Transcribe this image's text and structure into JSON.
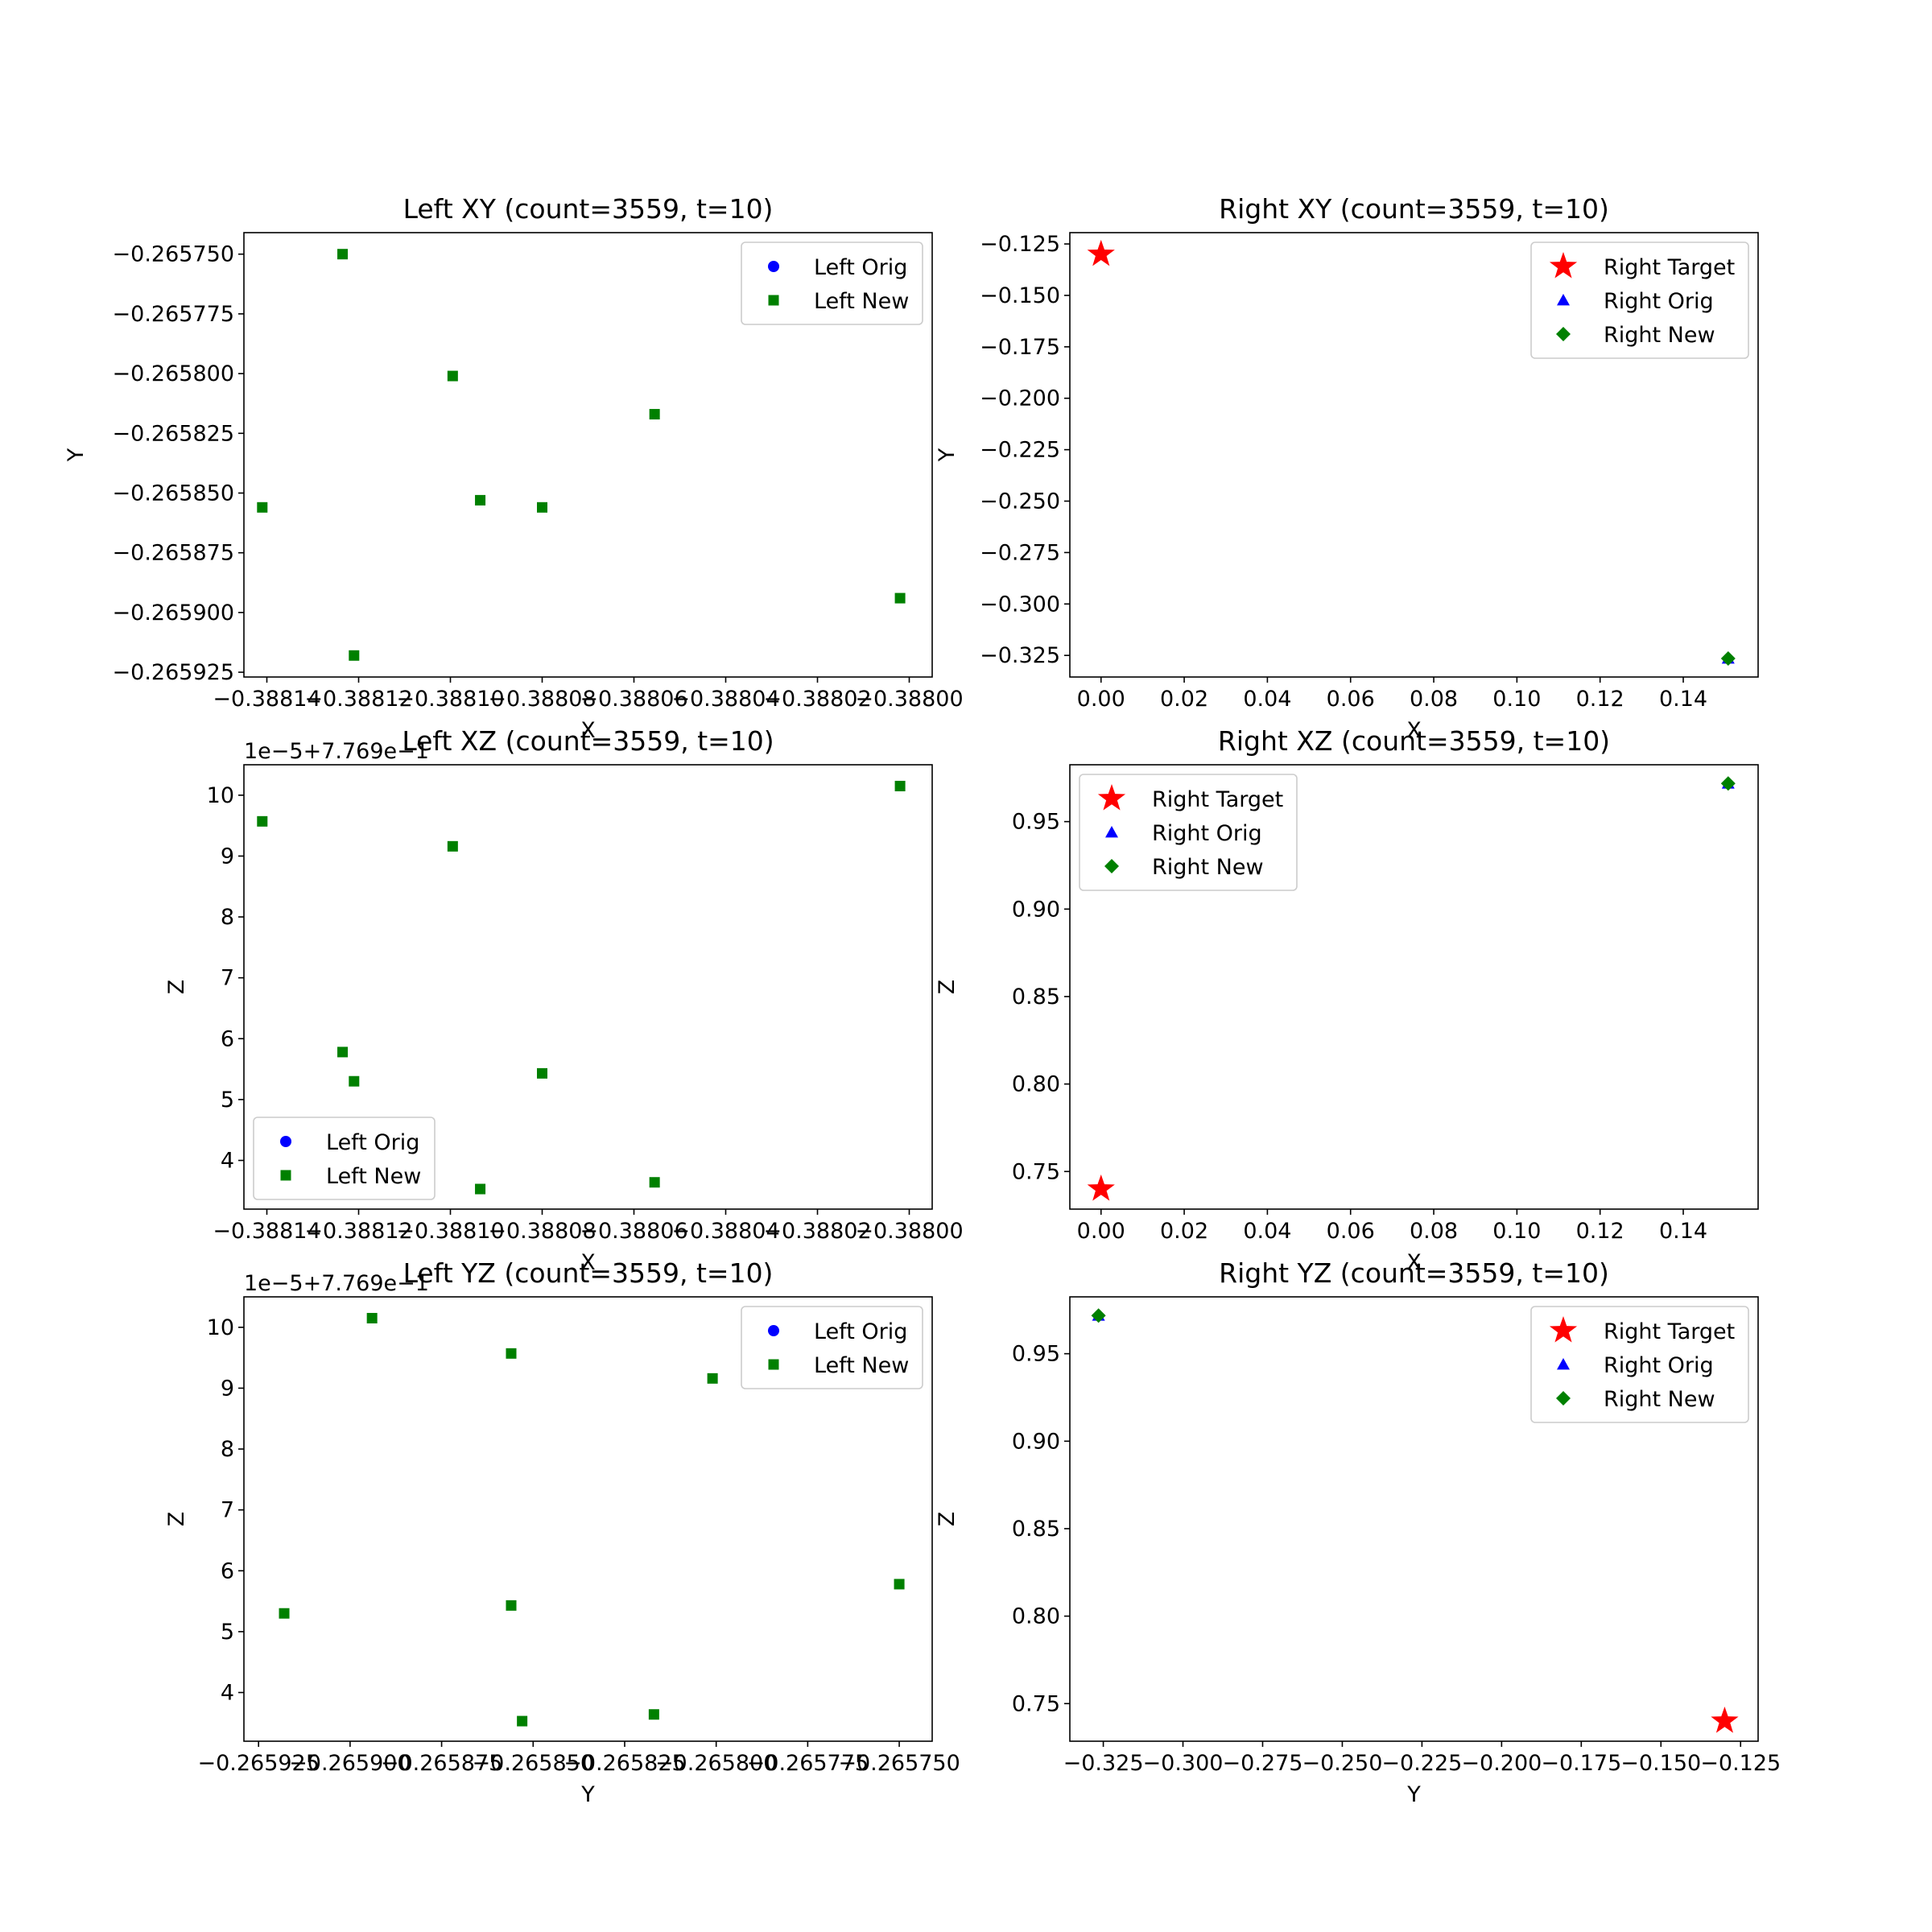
{
  "figure": {
    "background": "#ffffff"
  },
  "markers": {
    "orig_color": "#0000ff",
    "new_color": "#008000",
    "target_color": "#ff0000"
  },
  "chart_data": [
    {
      "id": "left-xy",
      "type": "scatter",
      "title": "Left XY (count=3559, t=10)",
      "xlabel": "X",
      "ylabel": "Y",
      "offset_text": "",
      "xlim": [
        -0.388145,
        -0.387995
      ],
      "ylim": [
        -0.265927,
        -0.265741
      ],
      "xticks": [
        -0.38814,
        -0.38812,
        -0.3881,
        -0.38808,
        -0.38806,
        -0.38804,
        -0.38802,
        -0.388
      ],
      "xtick_labels": [
        "−0.38814",
        "−0.38812",
        "−0.38810",
        "−0.38808",
        "−0.38806",
        "−0.38804",
        "−0.38802",
        "−0.38800"
      ],
      "yticks": [
        -0.26575,
        -0.265775,
        -0.2658,
        -0.265825,
        -0.26585,
        -0.265875,
        -0.2659,
        -0.265925
      ],
      "ytick_labels": [
        "−0.265750",
        "−0.265775",
        "−0.265800",
        "−0.265825",
        "−0.265850",
        "−0.265875",
        "−0.265900",
        "−0.265925"
      ],
      "legend": {
        "position": "upper right",
        "entries": [
          {
            "label": "Left Orig",
            "marker": "circle",
            "color": "#0000ff"
          },
          {
            "label": "Left New",
            "marker": "square",
            "color": "#008000"
          }
        ]
      },
      "series": [
        {
          "name": "Left Orig",
          "marker": "circle",
          "color": "#0000ff",
          "x": [],
          "y": []
        },
        {
          "name": "Left New",
          "marker": "square",
          "color": "#008000",
          "x": [
            -0.388141,
            -0.3881235,
            -0.388121,
            -0.3880995,
            -0.3880935,
            -0.38808,
            -0.3880555,
            -0.388002
          ],
          "y": [
            -0.265856,
            -0.26575,
            -0.265918,
            -0.265801,
            -0.265853,
            -0.265856,
            -0.265817,
            -0.265894
          ]
        }
      ]
    },
    {
      "id": "right-xy",
      "type": "scatter",
      "title": "Right XY (count=3559, t=10)",
      "xlabel": "X",
      "ylabel": "Y",
      "offset_text": "",
      "xlim": [
        -0.0075,
        0.158
      ],
      "ylim": [
        -0.3355,
        -0.1195
      ],
      "xticks": [
        0,
        0.02,
        0.04,
        0.06,
        0.08,
        0.1,
        0.12,
        0.14
      ],
      "xtick_labels": [
        "0.00",
        "0.02",
        "0.04",
        "0.06",
        "0.08",
        "0.10",
        "0.12",
        "0.14"
      ],
      "yticks": [
        -0.125,
        -0.15,
        -0.175,
        -0.2,
        -0.225,
        -0.25,
        -0.275,
        -0.3,
        -0.325
      ],
      "ytick_labels": [
        "−0.125",
        "−0.150",
        "−0.175",
        "−0.200",
        "−0.225",
        "−0.250",
        "−0.275",
        "−0.300",
        "−0.325"
      ],
      "legend": {
        "position": "upper right",
        "entries": [
          {
            "label": "Right Target",
            "marker": "star",
            "color": "#ff0000"
          },
          {
            "label": "Right Orig",
            "marker": "triangle",
            "color": "#0000ff"
          },
          {
            "label": "Right New",
            "marker": "diamond",
            "color": "#008000"
          }
        ]
      },
      "series": [
        {
          "name": "Right Target",
          "marker": "star",
          "color": "#ff0000",
          "x": [
            0.0
          ],
          "y": [
            -0.13
          ]
        },
        {
          "name": "Right Orig",
          "marker": "triangle",
          "color": "#0000ff",
          "x": [
            0.1508
          ],
          "y": [
            -0.3265
          ]
        },
        {
          "name": "Right New",
          "marker": "diamond",
          "color": "#008000",
          "x": [
            0.1508
          ],
          "y": [
            -0.3265
          ]
        }
      ]
    },
    {
      "id": "left-xz",
      "type": "scatter",
      "title": "Left XZ (count=3559, t=10)",
      "xlabel": "X",
      "ylabel": "Z",
      "offset_text": "1e−5+7.769e−1",
      "xlim": [
        -0.388145,
        -0.387995
      ],
      "ylim": [
        3.2,
        10.5
      ],
      "xticks": [
        -0.38814,
        -0.38812,
        -0.3881,
        -0.38808,
        -0.38806,
        -0.38804,
        -0.38802,
        -0.388
      ],
      "xtick_labels": [
        "−0.38814",
        "−0.38812",
        "−0.38810",
        "−0.38808",
        "−0.38806",
        "−0.38804",
        "−0.38802",
        "−0.38800"
      ],
      "yticks": [
        4,
        5,
        6,
        7,
        8,
        9,
        10
      ],
      "ytick_labels": [
        "4",
        "5",
        "6",
        "7",
        "8",
        "9",
        "10"
      ],
      "legend": {
        "position": "lower left",
        "entries": [
          {
            "label": "Left Orig",
            "marker": "circle",
            "color": "#0000ff"
          },
          {
            "label": "Left New",
            "marker": "square",
            "color": "#008000"
          }
        ]
      },
      "series": [
        {
          "name": "Left Orig",
          "marker": "circle",
          "color": "#0000ff",
          "x": [],
          "y": []
        },
        {
          "name": "Left New",
          "marker": "square",
          "color": "#008000",
          "x": [
            -0.388141,
            -0.3881235,
            -0.388121,
            -0.3880995,
            -0.3880935,
            -0.38808,
            -0.3880555,
            -0.388002
          ],
          "y": [
            9.57,
            5.78,
            5.3,
            9.16,
            3.53,
            5.43,
            3.64,
            10.15
          ]
        }
      ]
    },
    {
      "id": "right-xz",
      "type": "scatter",
      "title": "Right XZ (count=3559, t=10)",
      "xlabel": "X",
      "ylabel": "Z",
      "offset_text": "",
      "xlim": [
        -0.0075,
        0.158
      ],
      "ylim": [
        0.7285,
        0.9825
      ],
      "xticks": [
        0,
        0.02,
        0.04,
        0.06,
        0.08,
        0.1,
        0.12,
        0.14
      ],
      "xtick_labels": [
        "0.00",
        "0.02",
        "0.04",
        "0.06",
        "0.08",
        "0.10",
        "0.12",
        "0.14"
      ],
      "yticks": [
        0.75,
        0.8,
        0.85,
        0.9,
        0.95
      ],
      "ytick_labels": [
        "0.75",
        "0.80",
        "0.85",
        "0.90",
        "0.95"
      ],
      "legend": {
        "position": "upper left",
        "entries": [
          {
            "label": "Right Target",
            "marker": "star",
            "color": "#ff0000"
          },
          {
            "label": "Right Orig",
            "marker": "triangle",
            "color": "#0000ff"
          },
          {
            "label": "Right New",
            "marker": "diamond",
            "color": "#008000"
          }
        ]
      },
      "series": [
        {
          "name": "Right Target",
          "marker": "star",
          "color": "#ff0000",
          "x": [
            0.0
          ],
          "y": [
            0.74
          ]
        },
        {
          "name": "Right Orig",
          "marker": "triangle",
          "color": "#0000ff",
          "x": [
            0.1508
          ],
          "y": [
            0.9718
          ]
        },
        {
          "name": "Right New",
          "marker": "diamond",
          "color": "#008000",
          "x": [
            0.1508
          ],
          "y": [
            0.9718
          ]
        }
      ]
    },
    {
      "id": "left-yz",
      "type": "scatter",
      "title": "Left YZ (count=3559, t=10)",
      "xlabel": "Y",
      "ylabel": "Z",
      "offset_text": "1e−5+7.769e−1",
      "xlim": [
        -0.265929,
        -0.265741
      ],
      "ylim": [
        3.2,
        10.5
      ],
      "xticks": [
        -0.265925,
        -0.2659,
        -0.265875,
        -0.26585,
        -0.265825,
        -0.2658,
        -0.265775,
        -0.26575
      ],
      "xtick_labels": [
        "−0.265925",
        "−0.265900",
        "−0.265875",
        "−0.265850",
        "−0.265825",
        "−0.265800",
        "−0.265775",
        "−0.265750"
      ],
      "yticks": [
        4,
        5,
        6,
        7,
        8,
        9,
        10
      ],
      "ytick_labels": [
        "4",
        "5",
        "6",
        "7",
        "8",
        "9",
        "10"
      ],
      "legend": {
        "position": "upper right",
        "entries": [
          {
            "label": "Left Orig",
            "marker": "circle",
            "color": "#0000ff"
          },
          {
            "label": "Left New",
            "marker": "square",
            "color": "#008000"
          }
        ]
      },
      "series": [
        {
          "name": "Left Orig",
          "marker": "circle",
          "color": "#0000ff",
          "x": [],
          "y": []
        },
        {
          "name": "Left New",
          "marker": "square",
          "color": "#008000",
          "x": [
            -0.265918,
            -0.265894,
            -0.265856,
            -0.265853,
            -0.265856,
            -0.265817,
            -0.265801,
            -0.26575
          ],
          "y": [
            5.3,
            10.15,
            9.57,
            3.53,
            5.43,
            3.64,
            9.16,
            5.78
          ]
        }
      ]
    },
    {
      "id": "right-yz",
      "type": "scatter",
      "title": "Right YZ (count=3559, t=10)",
      "xlabel": "Y",
      "ylabel": "Z",
      "offset_text": "",
      "xlim": [
        -0.3355,
        -0.1195
      ],
      "ylim": [
        0.7285,
        0.9825
      ],
      "xticks": [
        -0.325,
        -0.3,
        -0.275,
        -0.25,
        -0.225,
        -0.2,
        -0.175,
        -0.15,
        -0.125
      ],
      "xtick_labels": [
        "−0.325",
        "−0.300",
        "−0.275",
        "−0.250",
        "−0.225",
        "−0.200",
        "−0.175",
        "−0.150",
        "−0.125"
      ],
      "yticks": [
        0.75,
        0.8,
        0.85,
        0.9,
        0.95
      ],
      "ytick_labels": [
        "0.75",
        "0.80",
        "0.85",
        "0.90",
        "0.95"
      ],
      "legend": {
        "position": "upper right",
        "entries": [
          {
            "label": "Right Target",
            "marker": "star",
            "color": "#ff0000"
          },
          {
            "label": "Right Orig",
            "marker": "triangle",
            "color": "#0000ff"
          },
          {
            "label": "Right New",
            "marker": "diamond",
            "color": "#008000"
          }
        ]
      },
      "series": [
        {
          "name": "Right Target",
          "marker": "star",
          "color": "#ff0000",
          "x": [
            -0.13
          ],
          "y": [
            0.74
          ]
        },
        {
          "name": "Right Orig",
          "marker": "triangle",
          "color": "#0000ff",
          "x": [
            -0.3265
          ],
          "y": [
            0.9718
          ]
        },
        {
          "name": "Right New",
          "marker": "diamond",
          "color": "#008000",
          "x": [
            -0.3265
          ],
          "y": [
            0.9718
          ]
        }
      ]
    }
  ]
}
